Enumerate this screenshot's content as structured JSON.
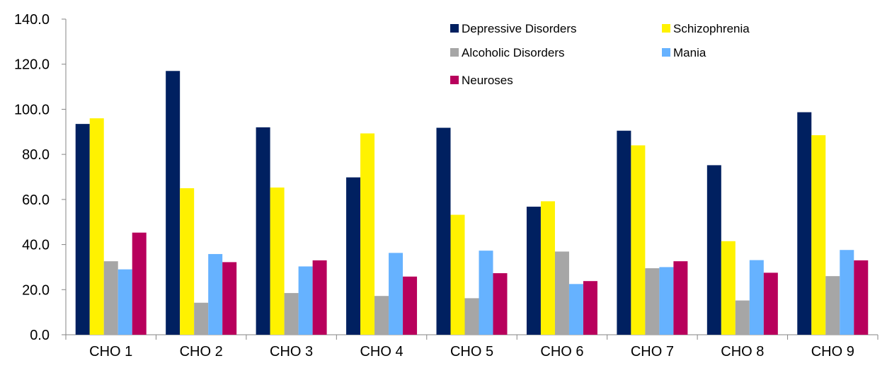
{
  "chart_data": {
    "type": "bar",
    "categories": [
      "CHO 1",
      "CHO 2",
      "CHO 3",
      "CHO 4",
      "CHO 5",
      "CHO 6",
      "CHO 7",
      "CHO 8",
      "CHO 9"
    ],
    "series": [
      {
        "name": "Depressive Disorders",
        "color": "#002060",
        "values": [
          93.5,
          117.0,
          92.0,
          69.8,
          91.8,
          56.8,
          90.5,
          75.2,
          98.7
        ]
      },
      {
        "name": "Schizophrenia",
        "color": "#FFF200",
        "values": [
          96.0,
          65.0,
          65.3,
          89.3,
          53.2,
          59.2,
          84.0,
          41.5,
          88.5
        ]
      },
      {
        "name": "Alcoholic Disorders",
        "color": "#A6A6A6",
        "values": [
          32.6,
          14.2,
          18.5,
          17.2,
          16.2,
          36.9,
          29.5,
          15.2,
          26.0
        ]
      },
      {
        "name": "Mania",
        "color": "#66B2FF",
        "values": [
          29.0,
          35.8,
          30.3,
          36.3,
          37.3,
          22.5,
          30.0,
          33.1,
          37.6
        ]
      },
      {
        "name": "Neuroses",
        "color": "#B8005C",
        "values": [
          45.3,
          32.2,
          33.0,
          25.8,
          27.3,
          23.8,
          32.6,
          27.5,
          33.0
        ]
      }
    ],
    "ylim": [
      0,
      140
    ],
    "yticks": [
      "0.0",
      "20.0",
      "40.0",
      "60.0",
      "80.0",
      "100.0",
      "120.0",
      "140.0"
    ],
    "grid": false,
    "legend_position": "top-right"
  }
}
